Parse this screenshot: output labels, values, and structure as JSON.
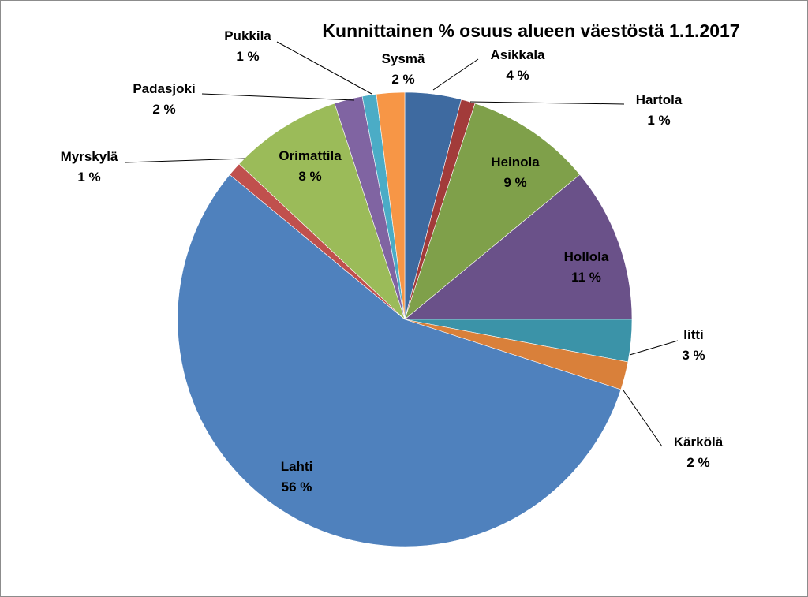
{
  "chart_data": {
    "type": "pie",
    "title": "Kunnittainen % osuus alueen väestöstä 1.1.2017",
    "slices": [
      {
        "name": "Asikkala",
        "value": 4,
        "label": "4 %",
        "color": "#3E6AA0"
      },
      {
        "name": "Hartola",
        "value": 1,
        "label": "1 %",
        "color": "#A23B3A"
      },
      {
        "name": "Heinola",
        "value": 9,
        "label": "9 %",
        "color": "#7FA04A"
      },
      {
        "name": "Hollola",
        "value": 11,
        "label": "11 %",
        "color": "#6A5189"
      },
      {
        "name": "Iitti",
        "value": 3,
        "label": "3 %",
        "color": "#3B93A8"
      },
      {
        "name": "Kärkölä",
        "value": 2,
        "label": "2 %",
        "color": "#D9803A"
      },
      {
        "name": "Lahti",
        "value": 56,
        "label": "56 %",
        "color": "#4F81BD"
      },
      {
        "name": "Myrskylä",
        "value": 1,
        "label": "1 %",
        "color": "#C0504D"
      },
      {
        "name": "Orimattila",
        "value": 8,
        "label": "8 %",
        "color": "#9BBB59"
      },
      {
        "name": "Padasjoki",
        "value": 2,
        "label": "2 %",
        "color": "#8064A2"
      },
      {
        "name": "Pukkila",
        "value": 1,
        "label": "1 %",
        "color": "#4BACC6"
      },
      {
        "name": "Sysmä",
        "value": 2,
        "label": "2 %",
        "color": "#F79646"
      }
    ]
  }
}
